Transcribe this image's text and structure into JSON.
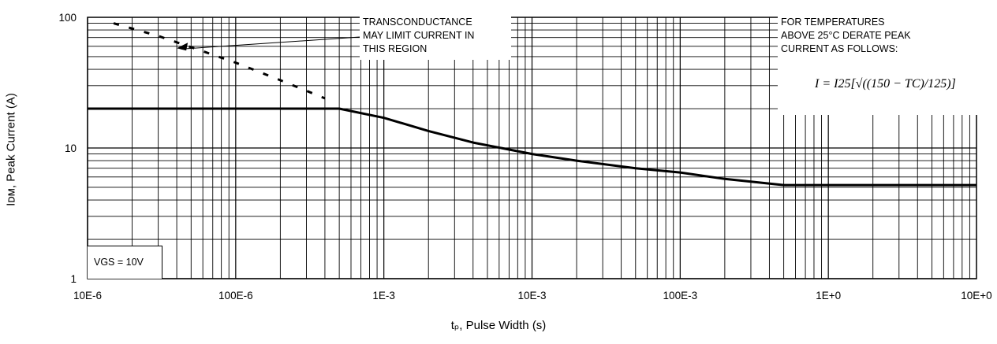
{
  "chart_data": {
    "type": "line",
    "xscale": "log",
    "yscale": "log",
    "xlim": [
      1e-05,
      10
    ],
    "ylim": [
      1,
      100
    ],
    "x_ticks": [
      "10E-6",
      "100E-6",
      "1E-3",
      "10E-3",
      "100E-3",
      "1E+0",
      "10E+0"
    ],
    "y_ticks": [
      "1",
      "10",
      "100"
    ],
    "xlabel": "tₚ, Pulse Width (s)",
    "ylabel": "Iᴅᴍ, Peak Current (A)",
    "grid": true,
    "series": [
      {
        "style": "solid",
        "points": [
          [
            1e-05,
            20
          ],
          [
            0.0001,
            20
          ],
          [
            0.0005,
            20
          ],
          [
            0.001,
            17
          ],
          [
            0.002,
            13.5
          ],
          [
            0.004,
            11
          ],
          [
            0.01,
            9
          ],
          [
            0.02,
            8
          ],
          [
            0.05,
            7
          ],
          [
            0.1,
            6.5
          ],
          [
            0.2,
            5.8
          ],
          [
            0.5,
            5.2
          ],
          [
            1,
            5.2
          ],
          [
            10,
            5.2
          ]
        ]
      },
      {
        "style": "dashed",
        "points": [
          [
            1.5e-05,
            90
          ],
          [
            3e-05,
            72
          ],
          [
            6e-05,
            55
          ],
          [
            0.0001,
            45
          ],
          [
            0.0002,
            33
          ],
          [
            0.0004,
            24
          ]
        ]
      }
    ],
    "annotations": {
      "transconductance": [
        "TRANSCONDUCTANCE",
        "MAY LIMIT CURRENT IN",
        "THIS REGION"
      ],
      "derate": [
        "FOR TEMPERATURES",
        "ABOVE 25°C DERATE PEAK",
        "CURRENT AS FOLLOWS:"
      ],
      "formula": "I = I25[√((150 − TC)/125)]",
      "vgs": "VGS = 10V"
    }
  }
}
